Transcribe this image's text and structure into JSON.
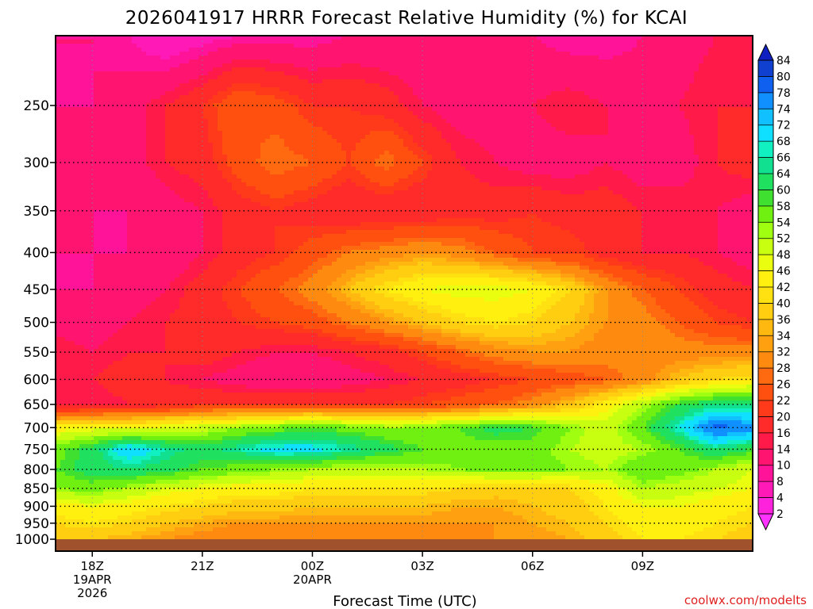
{
  "chart_data": {
    "type": "heatmap",
    "title": "2026041917 HRRR Forecast Relative Humidity (%) for KCAI",
    "xlabel": "Forecast Time (UTC)",
    "ylabel": "",
    "credit": "coolwx.com/modelts",
    "y_axis": {
      "label": "",
      "scale": "pressure",
      "range": [
        1000,
        200
      ],
      "ticks": [
        250,
        300,
        350,
        400,
        450,
        500,
        550,
        600,
        650,
        700,
        750,
        800,
        850,
        900,
        950,
        1000
      ]
    },
    "x_axis": {
      "range_hours": [
        -1,
        18
      ],
      "ticks": [
        {
          "hour": 0,
          "label": "18Z",
          "sub1": "19APR",
          "sub2": "2026"
        },
        {
          "hour": 3,
          "label": "21Z",
          "sub1": "",
          "sub2": ""
        },
        {
          "hour": 6,
          "label": "00Z",
          "sub1": "20APR",
          "sub2": ""
        },
        {
          "hour": 9,
          "label": "03Z",
          "sub1": "",
          "sub2": ""
        },
        {
          "hour": 12,
          "label": "06Z",
          "sub1": "",
          "sub2": ""
        },
        {
          "hour": 15,
          "label": "09Z",
          "sub1": "",
          "sub2": ""
        }
      ]
    },
    "grid": true,
    "legend": "colorbar-right",
    "colorbar": {
      "levels": [
        2,
        4,
        8,
        10,
        14,
        16,
        20,
        22,
        26,
        28,
        32,
        34,
        36,
        40,
        42,
        46,
        48,
        52,
        54,
        58,
        60,
        64,
        66,
        68,
        72,
        74,
        78,
        80,
        84
      ],
      "colors": [
        "#ff33ff",
        "#ff22dd",
        "#ff1ab8",
        "#ff1499",
        "#ff1470",
        "#ff1a4a",
        "#ff2a2a",
        "#ff3a1a",
        "#ff5010",
        "#ff6a10",
        "#ff8a10",
        "#ffa010",
        "#ffb810",
        "#ffce10",
        "#ffe010",
        "#fff010",
        "#eaff10",
        "#c8ff10",
        "#a0ff10",
        "#70f010",
        "#40e030",
        "#20e060",
        "#10e090",
        "#10f0c0",
        "#10e0ff",
        "#10c0ff",
        "#1090ff",
        "#1060f0",
        "#1040d0",
        "#1020c0"
      ]
    },
    "rh_field": {
      "pressures": [
        200,
        250,
        300,
        350,
        400,
        450,
        500,
        550,
        600,
        650,
        700,
        750,
        800,
        850,
        900,
        950,
        1000
      ],
      "hours": [
        -1,
        0,
        1,
        2,
        3,
        4,
        5,
        6,
        7,
        8,
        9,
        10,
        11,
        12,
        13,
        14,
        15,
        16,
        17,
        18
      ],
      "values": [
        [
          10,
          10,
          8,
          4,
          6,
          8,
          8,
          8,
          10,
          10,
          10,
          10,
          10,
          10,
          8,
          8,
          10,
          12,
          14,
          14
        ],
        [
          10,
          10,
          12,
          16,
          20,
          26,
          24,
          20,
          20,
          18,
          14,
          12,
          12,
          14,
          16,
          14,
          12,
          14,
          16,
          16
        ],
        [
          14,
          12,
          12,
          16,
          18,
          24,
          28,
          26,
          22,
          28,
          22,
          16,
          14,
          12,
          12,
          14,
          12,
          12,
          16,
          18
        ],
        [
          12,
          10,
          10,
          12,
          14,
          18,
          20,
          18,
          16,
          16,
          16,
          18,
          18,
          20,
          18,
          18,
          16,
          16,
          14,
          12
        ],
        [
          10,
          10,
          10,
          10,
          14,
          18,
          20,
          24,
          28,
          30,
          32,
          30,
          26,
          22,
          22,
          18,
          16,
          16,
          14,
          12
        ],
        [
          10,
          10,
          12,
          14,
          18,
          22,
          26,
          30,
          36,
          42,
          46,
          48,
          48,
          46,
          40,
          32,
          26,
          22,
          18,
          16
        ],
        [
          12,
          12,
          14,
          16,
          18,
          20,
          22,
          24,
          28,
          32,
          36,
          40,
          42,
          40,
          36,
          32,
          30,
          26,
          22,
          20
        ],
        [
          16,
          14,
          16,
          16,
          18,
          16,
          14,
          14,
          16,
          18,
          22,
          26,
          30,
          32,
          32,
          30,
          30,
          30,
          30,
          30
        ],
        [
          14,
          16,
          18,
          16,
          14,
          12,
          10,
          10,
          12,
          14,
          16,
          18,
          20,
          22,
          24,
          26,
          30,
          36,
          40,
          42
        ],
        [
          14,
          14,
          16,
          18,
          20,
          20,
          20,
          20,
          20,
          20,
          22,
          24,
          26,
          30,
          36,
          44,
          52,
          60,
          64,
          64
        ],
        [
          44,
          46,
          46,
          48,
          50,
          54,
          56,
          58,
          56,
          54,
          54,
          58,
          62,
          60,
          54,
          50,
          58,
          68,
          80,
          76
        ],
        [
          56,
          62,
          72,
          66,
          62,
          66,
          70,
          70,
          66,
          62,
          58,
          56,
          56,
          56,
          52,
          50,
          52,
          58,
          64,
          60
        ],
        [
          58,
          62,
          64,
          62,
          58,
          56,
          54,
          52,
          50,
          50,
          52,
          54,
          56,
          56,
          54,
          52,
          58,
          56,
          52,
          48
        ],
        [
          54,
          56,
          52,
          48,
          46,
          44,
          44,
          42,
          42,
          42,
          42,
          40,
          38,
          38,
          40,
          44,
          52,
          50,
          48,
          46
        ],
        [
          44,
          46,
          44,
          42,
          40,
          38,
          38,
          36,
          36,
          36,
          36,
          34,
          34,
          36,
          38,
          42,
          46,
          46,
          44,
          42
        ],
        [
          40,
          42,
          40,
          36,
          34,
          32,
          32,
          32,
          32,
          32,
          32,
          32,
          32,
          34,
          36,
          40,
          44,
          44,
          42,
          40
        ],
        [
          36,
          36,
          34,
          32,
          30,
          28,
          28,
          28,
          28,
          28,
          30,
          30,
          32,
          32,
          34,
          38,
          42,
          42,
          40,
          38
        ]
      ]
    }
  },
  "colors": {
    "ground": "#a0522d",
    "grid": "#000000",
    "credit": "#e02020",
    "frame": "#000000"
  }
}
